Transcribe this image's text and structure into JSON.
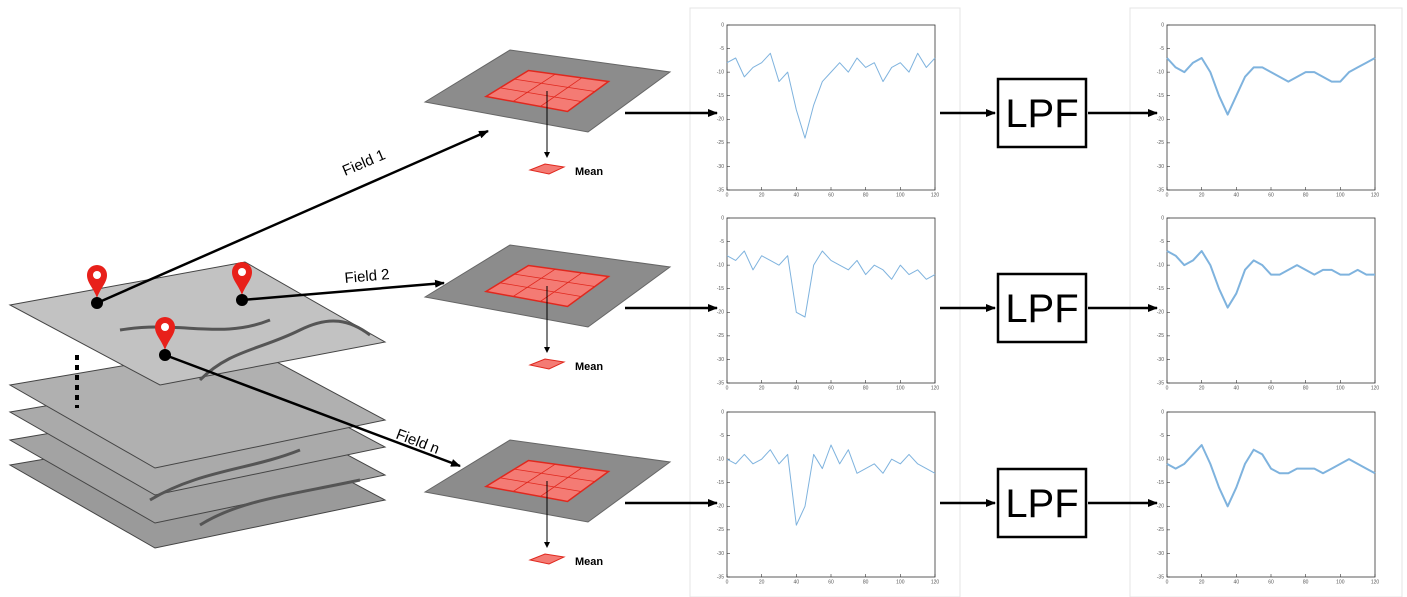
{
  "fields": [
    {
      "label": "Field 1"
    },
    {
      "label": "Field 2"
    },
    {
      "label": "Field n"
    }
  ],
  "axes": {
    "xlim": [
      0,
      120
    ],
    "ylim": [
      -35,
      0
    ],
    "xticks": [
      0,
      20,
      40,
      60,
      80,
      100,
      120
    ],
    "yticks": [
      0,
      -5,
      -10,
      -15,
      -20,
      -25,
      -30,
      -35
    ],
    "samples": [
      0,
      5,
      10,
      15,
      20,
      25,
      30,
      35,
      40,
      45,
      50,
      55,
      60,
      65,
      70,
      75,
      80,
      85,
      90,
      95,
      100,
      105,
      110,
      115,
      120
    ]
  },
  "rows": [
    {
      "mean": "Mean",
      "filter": "LPF",
      "raw": [
        -8,
        -7,
        -11,
        -9,
        -8,
        -6,
        -12,
        -10,
        -18,
        -24,
        -17,
        -12,
        -10,
        -8,
        -10,
        -7,
        -9,
        -8,
        -12,
        -9,
        -8,
        -10,
        -6,
        -9,
        -7
      ],
      "smoothed": [
        -7,
        -9,
        -10,
        -8,
        -7,
        -10,
        -15,
        -19,
        -15,
        -11,
        -9,
        -9,
        -10,
        -11,
        -12,
        -11,
        -10,
        -10,
        -11,
        -12,
        -12,
        -10,
        -9,
        -8,
        -7
      ]
    },
    {
      "mean": "Mean",
      "filter": "LPF",
      "raw": [
        -8,
        -9,
        -7,
        -11,
        -8,
        -9,
        -10,
        -8,
        -20,
        -21,
        -10,
        -7,
        -9,
        -10,
        -11,
        -9,
        -12,
        -10,
        -11,
        -13,
        -10,
        -12,
        -11,
        -13,
        -12
      ],
      "smoothed": [
        -7,
        -8,
        -10,
        -9,
        -7,
        -10,
        -15,
        -19,
        -16,
        -11,
        -9,
        -10,
        -12,
        -12,
        -11,
        -10,
        -11,
        -12,
        -11,
        -11,
        -12,
        -12,
        -11,
        -12,
        -12
      ]
    },
    {
      "mean": "Mean",
      "filter": "LPF",
      "raw": [
        -10,
        -11,
        -9,
        -11,
        -10,
        -8,
        -11,
        -9,
        -24,
        -20,
        -9,
        -12,
        -7,
        -11,
        -8,
        -13,
        -12,
        -11,
        -13,
        -10,
        -11,
        -9,
        -11,
        -12,
        -13
      ],
      "smoothed": [
        -11,
        -12,
        -11,
        -9,
        -7,
        -11,
        -16,
        -20,
        -16,
        -11,
        -8,
        -9,
        -12,
        -13,
        -13,
        -12,
        -12,
        -12,
        -13,
        -12,
        -11,
        -10,
        -11,
        -12,
        -13
      ]
    }
  ]
}
